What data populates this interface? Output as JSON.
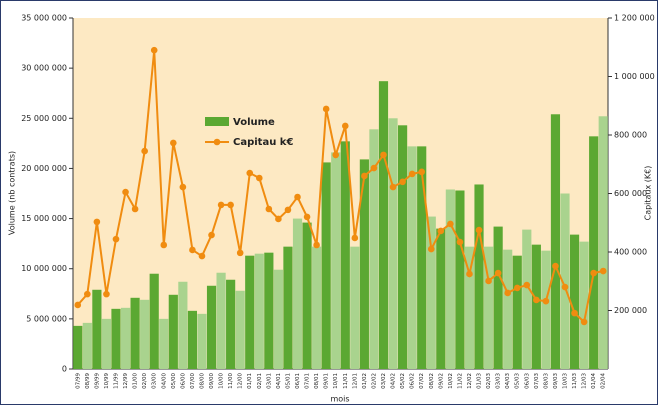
{
  "chart_data": {
    "type": "bar-line",
    "y_label": "Volume (nb contrats)",
    "y2_label": "Capitaux (K€)",
    "x_label": "mois",
    "categories": [
      "07/99",
      "08/99",
      "09/99",
      "10/99",
      "11/99",
      "12/99",
      "01/00",
      "02/00",
      "03/00",
      "04/00",
      "05/00",
      "06/00",
      "07/00",
      "08/00",
      "09/00",
      "10/00",
      "11/00",
      "12/00",
      "01/01",
      "02/01",
      "03/01",
      "04/01",
      "05/01",
      "06/01",
      "07/01",
      "08/01",
      "09/01",
      "10/01",
      "11/01",
      "12/01",
      "01/02",
      "02/02",
      "03/02",
      "04/02",
      "05/02",
      "06/02",
      "07/02",
      "08/02",
      "09/02",
      "10/02",
      "11/02",
      "12/02",
      "01/03",
      "02/03",
      "03/03",
      "04/03",
      "05/03",
      "06/03",
      "07/03",
      "08/03",
      "09/03",
      "10/03",
      "11/03",
      "12/03",
      "01/04",
      "02/04"
    ],
    "series": [
      {
        "name": "Volume",
        "colors": [
          "#5ba832",
          "#a9d38e"
        ],
        "values": [
          4300000,
          4600000,
          7900000,
          5000000,
          6000000,
          6100000,
          7100000,
          6900000,
          9500000,
          5000000,
          7400000,
          8700000,
          5800000,
          5500000,
          8300000,
          9600000,
          8900000,
          7800000,
          11300000,
          11500000,
          11600000,
          9900000,
          12200000,
          15000000,
          14600000,
          12200000,
          20600000,
          21600000,
          22700000,
          12200000,
          20900000,
          23900000,
          28700000,
          25000000,
          24300000,
          22200000,
          22200000,
          15200000,
          14000000,
          17900000,
          17800000,
          12200000,
          18400000,
          12200000,
          14200000,
          11900000,
          11300000,
          13900000,
          12400000,
          11800000,
          25400000,
          17500000,
          13400000,
          12700000,
          23200000,
          25200000
        ]
      },
      {
        "name": "Capitau k€",
        "color": "#f08c10",
        "axis": "y2",
        "values": [
          219000,
          256000,
          503000,
          256000,
          444000,
          605000,
          547000,
          745000,
          1090000,
          424000,
          773000,
          622000,
          407000,
          386000,
          458000,
          561000,
          561000,
          397000,
          670000,
          653000,
          547000,
          513000,
          544000,
          588000,
          520000,
          424000,
          889000,
          732000,
          831000,
          448000,
          660000,
          687000,
          732000,
          622000,
          640000,
          667000,
          674000,
          410000,
          472000,
          496000,
          434000,
          325000,
          475000,
          301000,
          328000,
          260000,
          277000,
          287000,
          236000,
          232000,
          352000,
          280000,
          191000,
          161000,
          328000,
          335000
        ]
      }
    ],
    "ylim": [
      0,
      35000000
    ],
    "yticks": [
      0,
      {
        "value": 5000000,
        "label": "5 000 000"
      },
      {
        "value": 10000000,
        "label": "10 000 000"
      },
      {
        "value": 15000000,
        "label": "15 000 000"
      },
      {
        "value": 20000000,
        "label": "20 000 000"
      },
      {
        "value": 25000000,
        "label": "25 000 000"
      },
      {
        "value": 30000000,
        "label": "30 000 000"
      },
      {
        "value": 35000000,
        "label": "35 000 000"
      }
    ],
    "y2lim": [
      0,
      1200000
    ],
    "y2ticks": [
      {
        "value": 200000,
        "label": "200 000"
      },
      {
        "value": 400000,
        "label": "400 000"
      },
      {
        "value": 600000,
        "label": "600 000"
      },
      {
        "value": 800000,
        "label": "800 000"
      },
      {
        "value": 1000000,
        "label": "1 000 000"
      },
      {
        "value": 1200000,
        "label": "1 200 000"
      }
    ]
  }
}
